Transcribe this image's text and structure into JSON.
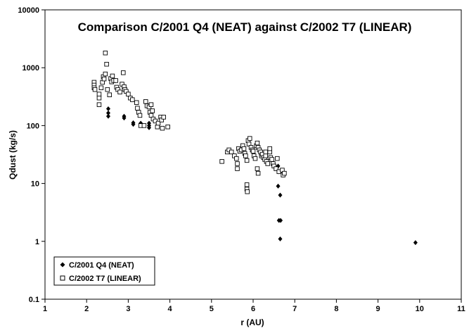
{
  "chart_data": {
    "type": "scatter",
    "title": "Comparison C/2001 Q4 (NEAT) against C/2002 T7 (LINEAR)",
    "xlabel": "r (AU)",
    "ylabel": "Qdust (kg/s)",
    "xlim": [
      1,
      11
    ],
    "ylim": [
      0.1,
      10000
    ],
    "yscale": "log",
    "x_ticks": [
      "1",
      "2",
      "3",
      "4",
      "5",
      "6",
      "7",
      "8",
      "9",
      "10",
      "11"
    ],
    "y_ticks": [
      "0.1",
      "1",
      "10",
      "100",
      "1000",
      "10000"
    ],
    "grid": false,
    "legend_position": "bottom-left",
    "series": [
      {
        "name": "C/2001 Q4 (NEAT)",
        "marker": "filled-diamond",
        "color": "#000000",
        "points": [
          [
            2.52,
            195
          ],
          [
            2.52,
            165
          ],
          [
            2.52,
            145
          ],
          [
            2.9,
            145
          ],
          [
            2.9,
            135
          ],
          [
            3.12,
            112
          ],
          [
            3.12,
            105
          ],
          [
            3.3,
            110
          ],
          [
            3.3,
            102
          ],
          [
            3.5,
            110
          ],
          [
            3.5,
            100
          ],
          [
            3.5,
            92
          ],
          [
            6.6,
            20
          ],
          [
            6.62,
            16
          ],
          [
            6.6,
            9
          ],
          [
            6.65,
            6.3
          ],
          [
            6.62,
            2.3
          ],
          [
            6.66,
            2.3
          ],
          [
            6.65,
            1.1
          ],
          [
            9.9,
            0.95
          ]
        ]
      },
      {
        "name": "C/2002 T7 (LINEAR)",
        "marker": "open-square",
        "color": "#000000",
        "points": [
          [
            2.18,
            560
          ],
          [
            2.18,
            500
          ],
          [
            2.18,
            450
          ],
          [
            2.2,
            420
          ],
          [
            2.3,
            350
          ],
          [
            2.3,
            300
          ],
          [
            2.3,
            230
          ],
          [
            2.35,
            450
          ],
          [
            2.38,
            560
          ],
          [
            2.4,
            700
          ],
          [
            2.42,
            640
          ],
          [
            2.45,
            1800
          ],
          [
            2.45,
            780
          ],
          [
            2.48,
            1150
          ],
          [
            2.5,
            420
          ],
          [
            2.55,
            340
          ],
          [
            2.58,
            650
          ],
          [
            2.6,
            570
          ],
          [
            2.62,
            720
          ],
          [
            2.65,
            600
          ],
          [
            2.7,
            600
          ],
          [
            2.72,
            460
          ],
          [
            2.75,
            420
          ],
          [
            2.8,
            380
          ],
          [
            2.85,
            520
          ],
          [
            2.88,
            820
          ],
          [
            2.9,
            470
          ],
          [
            2.92,
            420
          ],
          [
            2.95,
            390
          ],
          [
            3.0,
            350
          ],
          [
            3.05,
            300
          ],
          [
            3.1,
            280
          ],
          [
            3.2,
            250
          ],
          [
            3.22,
            200
          ],
          [
            3.25,
            170
          ],
          [
            3.28,
            150
          ],
          [
            3.3,
            100
          ],
          [
            3.38,
            100
          ],
          [
            3.42,
            260
          ],
          [
            3.45,
            220
          ],
          [
            3.5,
            210
          ],
          [
            3.52,
            170
          ],
          [
            3.55,
            150
          ],
          [
            3.58,
            180
          ],
          [
            3.6,
            130
          ],
          [
            3.65,
            120
          ],
          [
            3.7,
            95
          ],
          [
            3.72,
            110
          ],
          [
            3.78,
            140
          ],
          [
            3.8,
            125
          ],
          [
            3.82,
            90
          ],
          [
            3.85,
            140
          ],
          [
            3.95,
            95
          ],
          [
            3.55,
            230
          ],
          [
            5.25,
            24
          ],
          [
            5.38,
            35
          ],
          [
            5.42,
            38
          ],
          [
            5.48,
            35
          ],
          [
            5.55,
            30
          ],
          [
            5.6,
            27
          ],
          [
            5.62,
            22
          ],
          [
            5.62,
            18
          ],
          [
            5.65,
            40
          ],
          [
            5.68,
            36
          ],
          [
            5.72,
            38
          ],
          [
            5.75,
            45
          ],
          [
            5.78,
            40
          ],
          [
            5.8,
            33
          ],
          [
            5.82,
            30
          ],
          [
            5.85,
            25
          ],
          [
            5.85,
            9.5
          ],
          [
            5.85,
            8
          ],
          [
            5.86,
            7.2
          ],
          [
            5.88,
            55
          ],
          [
            5.9,
            48
          ],
          [
            5.92,
            60
          ],
          [
            5.95,
            42
          ],
          [
            5.98,
            38
          ],
          [
            6.0,
            36
          ],
          [
            6.02,
            30
          ],
          [
            6.05,
            27
          ],
          [
            6.08,
            45
          ],
          [
            6.1,
            50
          ],
          [
            6.12,
            42
          ],
          [
            6.15,
            38
          ],
          [
            6.18,
            35
          ],
          [
            6.2,
            30
          ],
          [
            6.22,
            32
          ],
          [
            6.25,
            28
          ],
          [
            6.28,
            26
          ],
          [
            6.3,
            30
          ],
          [
            6.32,
            24
          ],
          [
            6.35,
            22
          ],
          [
            6.4,
            35
          ],
          [
            6.42,
            28
          ],
          [
            6.45,
            26
          ],
          [
            6.48,
            22
          ],
          [
            6.5,
            20
          ],
          [
            6.55,
            18
          ],
          [
            6.58,
            27
          ],
          [
            6.62,
            16
          ],
          [
            6.7,
            17
          ],
          [
            6.72,
            14
          ],
          [
            6.75,
            15
          ],
          [
            6.1,
            18
          ],
          [
            6.12,
            15
          ],
          [
            6.4,
            40
          ],
          [
            6.3,
            35
          ]
        ]
      }
    ]
  }
}
